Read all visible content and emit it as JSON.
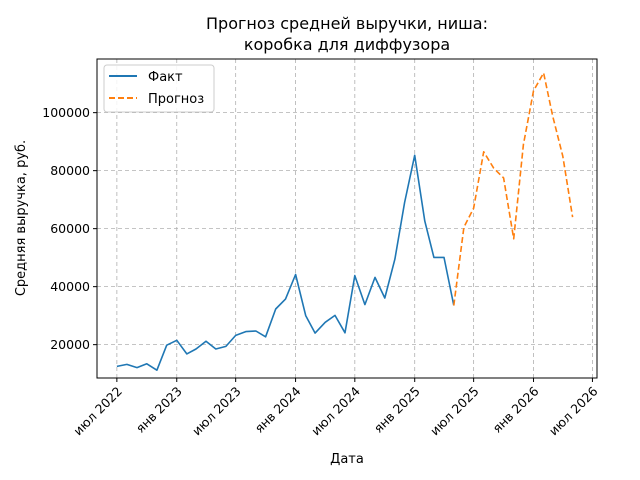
{
  "chart_data": {
    "type": "line",
    "title_line1": "Прогноз средней выручки, ниша:",
    "title_line2": "коробка для диффузора",
    "xlabel": "Дата",
    "ylabel": "Средняя выручка, руб.",
    "ylim": [
      8500,
      118500
    ],
    "y_ticks": [
      20000,
      40000,
      60000,
      80000,
      100000
    ],
    "x_ticks": [
      {
        "label": "июл 2022",
        "date": "2022-07-01"
      },
      {
        "label": "янв 2023",
        "date": "2023-01-01"
      },
      {
        "label": "июл 2023",
        "date": "2023-07-01"
      },
      {
        "label": "янв 2024",
        "date": "2024-01-01"
      },
      {
        "label": "июл 2024",
        "date": "2024-07-01"
      },
      {
        "label": "янв 2025",
        "date": "2025-01-01"
      },
      {
        "label": "июл 2025",
        "date": "2025-07-01"
      },
      {
        "label": "янв 2026",
        "date": "2026-01-01"
      },
      {
        "label": "июл 2026",
        "date": "2026-07-01"
      }
    ],
    "xlim": [
      "2022-05-01",
      "2026-07-15"
    ],
    "grid": true,
    "legend_position": "top-left",
    "series": [
      {
        "name": "Факт",
        "color": "#1f77b4",
        "style": "solid",
        "points": [
          [
            "2022-07-01",
            12500
          ],
          [
            "2022-08-01",
            13200
          ],
          [
            "2022-09-01",
            12100
          ],
          [
            "2022-10-01",
            13400
          ],
          [
            "2022-11-01",
            11200
          ],
          [
            "2022-12-01",
            19800
          ],
          [
            "2023-01-01",
            21500
          ],
          [
            "2023-02-01",
            16800
          ],
          [
            "2023-03-01",
            18500
          ],
          [
            "2023-04-01",
            21200
          ],
          [
            "2023-05-01",
            18500
          ],
          [
            "2023-06-01",
            19400
          ],
          [
            "2023-07-01",
            23200
          ],
          [
            "2023-08-01",
            24500
          ],
          [
            "2023-09-01",
            24700
          ],
          [
            "2023-10-01",
            22700
          ],
          [
            "2023-11-01",
            32300
          ],
          [
            "2023-12-01",
            35700
          ],
          [
            "2024-01-01",
            44200
          ],
          [
            "2024-02-01",
            30000
          ],
          [
            "2024-03-01",
            24000
          ],
          [
            "2024-04-01",
            27700
          ],
          [
            "2024-05-01",
            30100
          ],
          [
            "2024-06-01",
            24100
          ],
          [
            "2024-07-01",
            43800
          ],
          [
            "2024-08-01",
            33800
          ],
          [
            "2024-09-01",
            43200
          ],
          [
            "2024-10-01",
            36100
          ],
          [
            "2024-11-01",
            49500
          ],
          [
            "2024-12-01",
            69000
          ],
          [
            "2025-01-01",
            85300
          ],
          [
            "2025-02-01",
            62600
          ],
          [
            "2025-03-01",
            50100
          ],
          [
            "2025-04-01",
            50100
          ],
          [
            "2025-05-01",
            33500
          ]
        ]
      },
      {
        "name": "Прогноз",
        "color": "#ff7f0e",
        "style": "dashed",
        "points": [
          [
            "2025-05-01",
            33500
          ],
          [
            "2025-06-01",
            60500
          ],
          [
            "2025-07-01",
            67000
          ],
          [
            "2025-08-01",
            86500
          ],
          [
            "2025-09-01",
            80800
          ],
          [
            "2025-10-01",
            77500
          ],
          [
            "2025-11-01",
            56500
          ],
          [
            "2025-12-01",
            89000
          ],
          [
            "2026-01-01",
            107500
          ],
          [
            "2026-02-01",
            113700
          ],
          [
            "2026-03-01",
            98800
          ],
          [
            "2026-04-01",
            85000
          ],
          [
            "2026-05-01",
            64000
          ]
        ]
      }
    ]
  }
}
